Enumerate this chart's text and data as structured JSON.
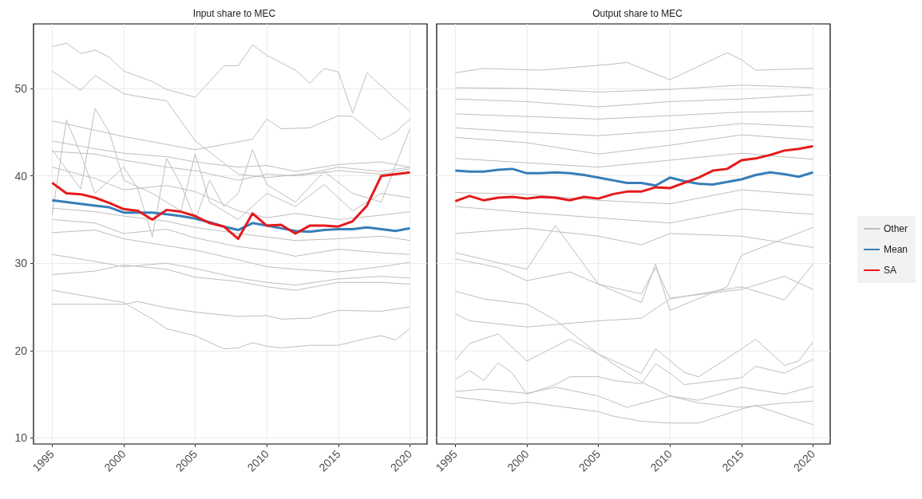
{
  "chart_data": [
    {
      "type": "line",
      "title": "Input share to MEC",
      "xlim": [
        1993.7,
        2021.2
      ],
      "xticks": [
        1995,
        2000,
        2005,
        2010,
        2015,
        2020
      ],
      "ylim": [
        9.3,
        57.4
      ],
      "yticks": [
        10,
        20,
        30,
        40,
        50
      ],
      "grid": true,
      "legend": false,
      "marker": "none",
      "line_style": "solid",
      "series": [
        {
          "color": "#bebebe",
          "x": [
            1995,
            1996,
            1997,
            1998,
            1999,
            2000,
            2002,
            2003,
            2005,
            2007,
            2008,
            2009,
            2010,
            2012,
            2013,
            2014,
            2015,
            2016,
            2017,
            2019,
            2020
          ],
          "values": [
            54.8,
            55.2,
            54.0,
            54.4,
            53.6,
            52.0,
            50.8,
            49.9,
            49.0,
            52.6,
            52.6,
            55.0,
            53.8,
            52.1,
            50.6,
            52.3,
            51.9,
            47.2,
            51.8,
            48.8,
            47.4
          ]
        },
        {
          "color": "#bebebe",
          "x": [
            1995,
            1997,
            1998,
            2000,
            2001,
            2003,
            2005,
            2008,
            2010,
            2013,
            2015,
            2018,
            2020
          ],
          "values": [
            52.0,
            49.8,
            51.5,
            49.4,
            49.1,
            48.6,
            44.0,
            40.2,
            39.8,
            40.3,
            41.0,
            40.5,
            41.0
          ]
        },
        {
          "color": "#bebebe",
          "x": [
            1995,
            2000,
            2005,
            2009,
            2010,
            2011,
            2013,
            2015,
            2016,
            2018,
            2019,
            2020
          ],
          "values": [
            46.3,
            44.5,
            43.0,
            44.2,
            46.5,
            45.4,
            45.5,
            46.9,
            46.8,
            44.1,
            45.0,
            46.5
          ]
        },
        {
          "color": "#bebebe",
          "x": [
            1995,
            2000,
            2001,
            2003,
            2005,
            2008,
            2010,
            2011,
            2013,
            2015,
            2018,
            2020
          ],
          "values": [
            25.3,
            25.3,
            25.6,
            24.9,
            24.4,
            23.9,
            24.0,
            23.6,
            23.7,
            24.6,
            24.5,
            25.0
          ]
        },
        {
          "color": "#bebebe",
          "x": [
            1995,
            2000,
            2002,
            2003,
            2005,
            2007,
            2008,
            2009,
            2010,
            2011,
            2013,
            2015,
            2017,
            2018,
            2019,
            2020
          ],
          "values": [
            26.9,
            25.5,
            23.6,
            22.5,
            21.7,
            20.2,
            20.3,
            20.9,
            20.5,
            20.3,
            20.6,
            20.6,
            21.4,
            21.7,
            21.2,
            22.5
          ]
        },
        {
          "color": "#bebebe",
          "x": [
            1995,
            1998,
            2000,
            2003,
            2005,
            2008,
            2010,
            2012,
            2015,
            2018,
            2020
          ],
          "values": [
            28.7,
            29.1,
            29.8,
            29.3,
            28.4,
            27.9,
            27.3,
            26.9,
            27.8,
            27.8,
            27.6
          ]
        },
        {
          "color": "#bebebe",
          "x": [
            1995,
            1998,
            2000,
            2003,
            2005,
            2008,
            2010,
            2012,
            2015,
            2018,
            2020
          ],
          "values": [
            31.0,
            30.2,
            29.6,
            30.0,
            29.4,
            28.3,
            27.8,
            27.5,
            28.2,
            28.5,
            28.3
          ]
        },
        {
          "color": "#bebebe",
          "x": [
            1995,
            1998,
            2000,
            2003,
            2005,
            2008,
            2010,
            2012,
            2015,
            2018,
            2020
          ],
          "values": [
            33.5,
            33.8,
            32.8,
            32.0,
            31.5,
            30.4,
            29.6,
            29.3,
            29.0,
            29.6,
            30.1
          ]
        },
        {
          "color": "#bebebe",
          "x": [
            1995,
            1998,
            2000,
            2003,
            2005,
            2008,
            2010,
            2012,
            2015,
            2018,
            2020
          ],
          "values": [
            35.0,
            34.6,
            33.4,
            33.9,
            32.9,
            31.9,
            31.5,
            30.8,
            31.6,
            31.2,
            31.0
          ]
        },
        {
          "color": "#bebebe",
          "x": [
            1995,
            1998,
            2000,
            2003,
            2005,
            2008,
            2010,
            2012,
            2015,
            2018,
            2020
          ],
          "values": [
            36.3,
            35.9,
            35.4,
            34.8,
            34.1,
            33.4,
            33.0,
            32.6,
            32.8,
            33.1,
            32.6
          ]
        },
        {
          "color": "#bebebe",
          "x": [
            1995,
            1998,
            2000,
            2003,
            2005,
            2008,
            2010,
            2012,
            2015,
            2018,
            2020
          ],
          "values": [
            41.0,
            39.7,
            38.4,
            38.9,
            38.2,
            36.0,
            35.2,
            35.7,
            35.0,
            35.5,
            35.9
          ]
        },
        {
          "color": "#bebebe",
          "x": [
            1995,
            1998,
            2000,
            2003,
            2005,
            2008,
            2010,
            2012,
            2015,
            2018,
            2020
          ],
          "values": [
            42.8,
            42.5,
            41.8,
            41.0,
            40.6,
            39.5,
            40.2,
            40.0,
            40.6,
            40.2,
            40.8
          ]
        },
        {
          "color": "#bebebe",
          "x": [
            1995,
            1998,
            2000,
            2003,
            2005,
            2008,
            2010,
            2012,
            2015,
            2018,
            2020
          ],
          "values": [
            44.0,
            43.1,
            42.6,
            42.2,
            41.6,
            41.0,
            41.2,
            40.5,
            41.3,
            41.6,
            41.0
          ]
        },
        {
          "color": "#bebebe",
          "x": [
            1995,
            1996,
            1997,
            1998,
            2000,
            2001,
            2002,
            2003,
            2004,
            2005,
            2006,
            2007,
            2008,
            2009,
            2010,
            2012,
            2014,
            2016,
            2018,
            2020
          ],
          "values": [
            35.5,
            46.4,
            42.5,
            38.0,
            41.0,
            38.5,
            33.0,
            42.0,
            39.0,
            35.0,
            39.5,
            36.5,
            38.0,
            43.0,
            39.0,
            37.0,
            40.5,
            38.0,
            37.0,
            45.4
          ]
        },
        {
          "color": "#bebebe",
          "x": [
            1995,
            1997,
            1998,
            1999,
            2000,
            2002,
            2004,
            2005,
            2006,
            2008,
            2010,
            2012,
            2014,
            2016,
            2018,
            2020
          ],
          "values": [
            43.0,
            38.5,
            47.7,
            45.0,
            39.5,
            38.0,
            36.0,
            42.5,
            37.0,
            35.0,
            38.0,
            36.5,
            39.0,
            36.0,
            38.0,
            37.5
          ]
        },
        {
          "color": "#377eb8",
          "x": [
            1995,
            1996,
            1997,
            1998,
            1999,
            2000,
            2001,
            2002,
            2003,
            2004,
            2005,
            2006,
            2007,
            2008,
            2009,
            2010,
            2011,
            2012,
            2013,
            2014,
            2015,
            2016,
            2017,
            2018,
            2019,
            2020
          ],
          "values": [
            37.2,
            37.0,
            36.8,
            36.6,
            36.4,
            35.8,
            35.8,
            35.8,
            35.6,
            35.4,
            35.1,
            34.7,
            34.2,
            33.8,
            34.6,
            34.3,
            34.0,
            33.7,
            33.6,
            33.8,
            33.9,
            33.9,
            34.1,
            33.9,
            33.7,
            34.0
          ]
        },
        {
          "color": "#e41a1c",
          "x": [
            1995,
            1996,
            1997,
            1998,
            1999,
            2000,
            2001,
            2002,
            2003,
            2004,
            2005,
            2006,
            2007,
            2008,
            2009,
            2010,
            2011,
            2012,
            2013,
            2014,
            2015,
            2016,
            2017,
            2018,
            2019,
            2020
          ],
          "values": [
            39.2,
            38.0,
            37.9,
            37.5,
            36.9,
            36.2,
            36.0,
            35.0,
            36.1,
            35.9,
            35.4,
            34.6,
            34.2,
            32.8,
            35.7,
            34.3,
            34.4,
            33.4,
            34.3,
            34.3,
            34.2,
            34.8,
            36.6,
            40.0,
            40.2,
            40.4
          ]
        }
      ]
    },
    {
      "type": "line",
      "title": "Output share to MEC",
      "xlim": [
        1993.7,
        2021.2
      ],
      "xticks": [
        1995,
        2000,
        2005,
        2010,
        2015,
        2020
      ],
      "ylim": [
        9.3,
        57.4
      ],
      "yticks": [
        10,
        20,
        30,
        40,
        50
      ],
      "tick_labels": "x",
      "grid": true,
      "legend": "right",
      "marker": "none",
      "line_style": "solid",
      "series": [
        {
          "name": "Other",
          "color": "#bebebe",
          "x": [
            1995,
            1997,
            2001,
            2006,
            2007,
            2010,
            2014,
            2015,
            2016,
            2020
          ],
          "values": [
            51.8,
            52.3,
            52.1,
            52.8,
            53.0,
            51.0,
            54.1,
            53.3,
            52.1,
            52.3
          ]
        },
        {
          "color": "#bebebe",
          "x": [
            1995,
            2000,
            2005,
            2010,
            2015,
            2020
          ],
          "values": [
            50.1,
            50.0,
            49.6,
            49.9,
            50.4,
            50.1
          ]
        },
        {
          "color": "#bebebe",
          "x": [
            1995,
            2000,
            2005,
            2010,
            2015,
            2020
          ],
          "values": [
            48.8,
            48.5,
            47.9,
            48.5,
            48.8,
            49.3
          ]
        },
        {
          "color": "#bebebe",
          "x": [
            1995,
            2000,
            2005,
            2010,
            2015,
            2020
          ],
          "values": [
            47.1,
            46.8,
            46.5,
            46.9,
            47.3,
            47.4
          ]
        },
        {
          "color": "#bebebe",
          "x": [
            1995,
            2000,
            2005,
            2010,
            2015,
            2020
          ],
          "values": [
            45.5,
            45.0,
            44.6,
            45.2,
            46.0,
            45.6
          ]
        },
        {
          "color": "#bebebe",
          "x": [
            1995,
            2000,
            2005,
            2010,
            2015,
            2020
          ],
          "values": [
            44.4,
            43.8,
            42.5,
            43.5,
            44.7,
            44.1
          ]
        },
        {
          "color": "#bebebe",
          "x": [
            1995,
            2000,
            2005,
            2010,
            2015,
            2020
          ],
          "values": [
            42.0,
            41.5,
            41.0,
            41.8,
            42.6,
            41.9
          ]
        },
        {
          "color": "#bebebe",
          "x": [
            1995,
            2000,
            2005,
            2010,
            2015,
            2020
          ],
          "values": [
            38.1,
            37.9,
            37.2,
            36.8,
            38.4,
            37.8
          ]
        },
        {
          "color": "#bebebe",
          "x": [
            1995,
            2000,
            2005,
            2010,
            2015,
            2020
          ],
          "values": [
            36.5,
            35.8,
            35.2,
            34.6,
            36.2,
            35.6
          ]
        },
        {
          "color": "#bebebe",
          "x": [
            1995,
            2000,
            2005,
            2008,
            2010,
            2015,
            2020
          ],
          "values": [
            33.4,
            34.0,
            33.1,
            32.1,
            33.4,
            33.1,
            31.8
          ]
        },
        {
          "color": "#bebebe",
          "x": [
            1995,
            2000,
            2002,
            2005,
            2008,
            2009,
            2010,
            2014,
            2015,
            2020
          ],
          "values": [
            31.2,
            29.3,
            34.3,
            27.6,
            25.5,
            29.9,
            24.6,
            27.3,
            30.9,
            34.1
          ]
        },
        {
          "color": "#bebebe",
          "x": [
            1995,
            1998,
            2000,
            2003,
            2005,
            2008,
            2009,
            2010,
            2015,
            2018,
            2020
          ],
          "values": [
            30.5,
            29.5,
            28.0,
            29.0,
            27.6,
            26.5,
            29.5,
            26.0,
            27.0,
            28.5,
            27.0
          ]
        },
        {
          "color": "#bebebe",
          "x": [
            1995,
            1996,
            2000,
            2005,
            2008,
            2010,
            2011,
            2015,
            2018,
            2020
          ],
          "values": [
            24.2,
            23.4,
            22.7,
            23.4,
            23.7,
            25.9,
            26.2,
            27.3,
            25.8,
            29.9
          ]
        },
        {
          "color": "#bebebe",
          "x": [
            1995,
            1997,
            2000,
            2002,
            2005,
            2008,
            2010,
            2012,
            2015,
            2018,
            2020
          ],
          "values": [
            26.8,
            25.9,
            25.3,
            23.5,
            19.6,
            16.4,
            14.8,
            14.0,
            13.5,
            14.0,
            14.2
          ]
        },
        {
          "color": "#bebebe",
          "x": [
            1995,
            1996,
            1998,
            2000,
            2003,
            2005,
            2008,
            2009,
            2011,
            2012,
            2014,
            2016,
            2018,
            2019,
            2020
          ],
          "values": [
            18.9,
            20.8,
            21.9,
            18.8,
            21.3,
            19.6,
            17.4,
            20.2,
            17.5,
            17.0,
            19.1,
            21.3,
            18.3,
            18.8,
            21.0
          ]
        },
        {
          "color": "#bebebe",
          "x": [
            1995,
            1996,
            1997,
            1998,
            1999,
            2000,
            2002,
            2003,
            2005,
            2006,
            2008,
            2009,
            2010,
            2011,
            2015,
            2016,
            2018,
            2020
          ],
          "values": [
            16.7,
            17.7,
            16.6,
            18.6,
            17.4,
            15.0,
            16.1,
            17.0,
            17.0,
            16.6,
            16.2,
            18.5,
            17.4,
            16.1,
            16.9,
            18.2,
            17.4,
            19.0
          ]
        },
        {
          "color": "#bebebe",
          "x": [
            1995,
            1997,
            2000,
            2002,
            2005,
            2007,
            2010,
            2012,
            2015,
            2018,
            2020
          ],
          "values": [
            15.3,
            15.6,
            15.1,
            15.8,
            14.8,
            13.5,
            14.8,
            14.3,
            15.8,
            15.0,
            15.9
          ]
        },
        {
          "color": "#bebebe",
          "x": [
            1995,
            1999,
            2000,
            2005,
            2006,
            2008,
            2010,
            2012,
            2015,
            2016,
            2020
          ],
          "values": [
            14.7,
            13.9,
            14.1,
            13.0,
            12.5,
            11.9,
            11.7,
            11.7,
            13.3,
            13.7,
            11.5
          ]
        },
        {
          "name": "Mean",
          "color": "#377eb8",
          "x": [
            1995,
            1996,
            1997,
            1998,
            1999,
            2000,
            2001,
            2002,
            2003,
            2004,
            2005,
            2006,
            2007,
            2008,
            2009,
            2010,
            2011,
            2012,
            2013,
            2014,
            2015,
            2016,
            2017,
            2018,
            2019,
            2020
          ],
          "values": [
            40.6,
            40.5,
            40.5,
            40.7,
            40.8,
            40.3,
            40.3,
            40.4,
            40.3,
            40.1,
            39.8,
            39.5,
            39.2,
            39.2,
            38.9,
            39.8,
            39.4,
            39.1,
            39.0,
            39.3,
            39.6,
            40.1,
            40.4,
            40.2,
            39.9,
            40.4
          ]
        },
        {
          "name": "SA",
          "color": "#e41a1c",
          "x": [
            1995,
            1996,
            1997,
            1998,
            1999,
            2000,
            2001,
            2002,
            2003,
            2004,
            2005,
            2006,
            2007,
            2008,
            2009,
            2010,
            2011,
            2012,
            2013,
            2014,
            2015,
            2016,
            2017,
            2018,
            2019,
            2020
          ],
          "values": [
            37.1,
            37.7,
            37.2,
            37.5,
            37.6,
            37.4,
            37.6,
            37.5,
            37.2,
            37.6,
            37.4,
            37.9,
            38.2,
            38.2,
            38.7,
            38.6,
            39.2,
            39.8,
            40.6,
            40.8,
            41.8,
            42.0,
            42.4,
            42.9,
            43.1,
            43.4
          ]
        }
      ]
    }
  ]
}
